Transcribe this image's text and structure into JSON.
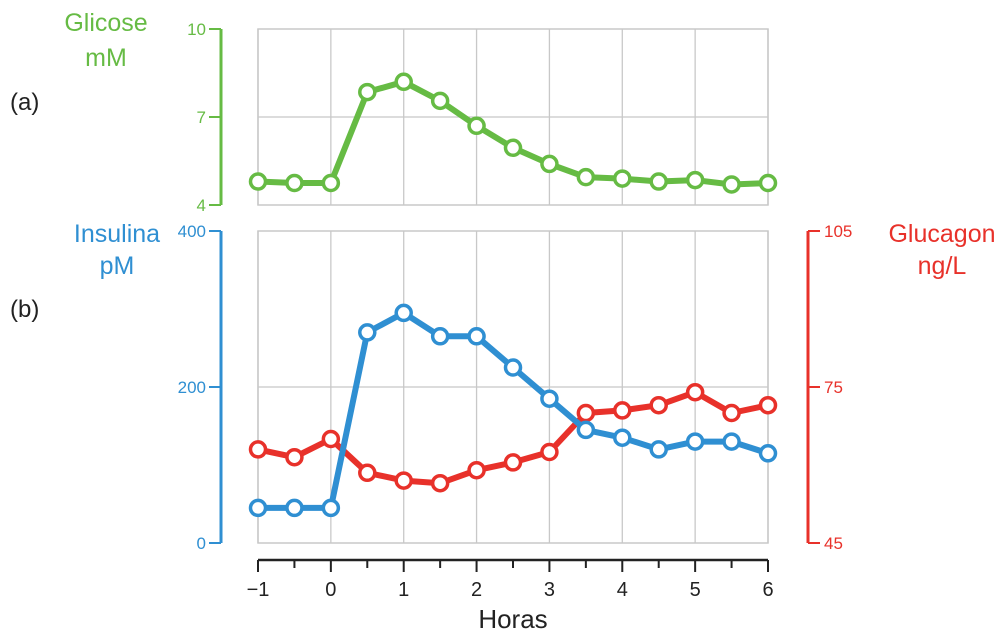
{
  "chart_data": [
    {
      "panel_label": "(a)",
      "type": "line",
      "ylabel_lines": [
        "Glicose",
        "mM"
      ],
      "ylim": [
        4,
        10
      ],
      "yticks": [
        4,
        7,
        10
      ],
      "x": [
        -1,
        -0.5,
        0,
        0.5,
        1,
        1.5,
        2,
        2.5,
        3,
        3.5,
        4,
        4.5,
        5,
        5.5,
        6
      ],
      "series": [
        {
          "key": "glicose",
          "values": [
            4.8,
            4.75,
            4.75,
            7.85,
            8.2,
            7.55,
            6.7,
            5.95,
            5.4,
            4.95,
            4.9,
            4.8,
            4.85,
            4.7,
            4.75
          ],
          "color": "#66bb44",
          "axis": "left"
        }
      ],
      "grid": true
    },
    {
      "panel_label": "(b)",
      "type": "line",
      "left_ylabel_lines": [
        "Insulina",
        "pM"
      ],
      "left_ylim": [
        0,
        400
      ],
      "left_yticks": [
        0,
        200,
        400
      ],
      "right_ylabel_lines": [
        "Glucagon",
        "ng/L"
      ],
      "right_ylim": [
        45,
        105
      ],
      "right_yticks": [
        45,
        75,
        105
      ],
      "xlabel": "Horas",
      "xlim": [
        -1,
        6
      ],
      "xticks": [
        -1,
        0,
        1,
        2,
        3,
        4,
        5,
        6
      ],
      "xtick_labels": [
        "−1",
        "0",
        "1",
        "2",
        "3",
        "4",
        "5",
        "6"
      ],
      "x": [
        -1,
        -0.5,
        0,
        0.5,
        1,
        1.5,
        2,
        2.5,
        3,
        3.5,
        4,
        4.5,
        5,
        5.5,
        6
      ],
      "series": [
        {
          "key": "glucagon",
          "values": [
            63,
            61.5,
            65,
            58.5,
            57,
            56.5,
            59,
            60.5,
            62.5,
            70,
            70.5,
            71.5,
            74,
            70,
            71.5
          ],
          "color": "#e8312a",
          "axis": "right"
        },
        {
          "key": "insulina",
          "values": [
            45,
            45,
            45,
            270,
            295,
            265,
            265,
            225,
            185,
            145,
            135,
            120,
            130,
            130,
            115
          ],
          "color": "#2f8fd2",
          "axis": "left"
        }
      ],
      "grid": true
    }
  ],
  "colors": {
    "glicose": "#66bb44",
    "insulina": "#2f8fd2",
    "glucagon": "#e8312a",
    "grid": "#c8c8c8",
    "axis_dark": "#222222"
  }
}
